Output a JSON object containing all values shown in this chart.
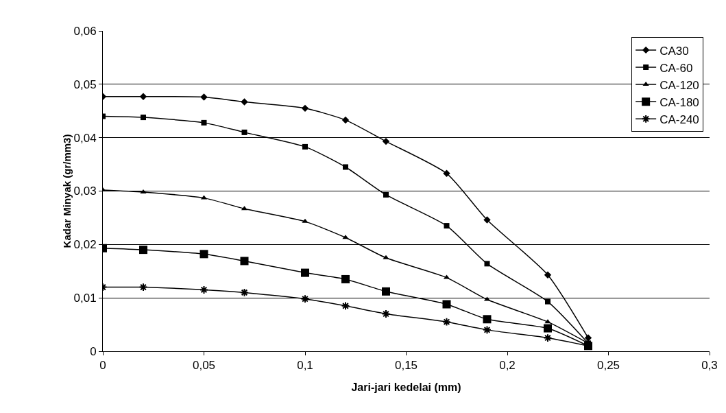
{
  "chart_data": {
    "type": "line",
    "xlabel": "Jari-jari kedelai (mm)",
    "ylabel": "Kadar Minyak (gr/mm3)",
    "x": [
      0,
      0.02,
      0.05,
      0.07,
      0.1,
      0.12,
      0.14,
      0.17,
      0.19,
      0.22,
      0.24
    ],
    "series": [
      {
        "name": "CA30",
        "color": "#000000",
        "marker": "diamond",
        "values": [
          0.0477,
          0.0477,
          0.0476,
          0.0467,
          0.0455,
          0.0433,
          0.0393,
          0.0333,
          0.0246,
          0.0143,
          0.0025
        ]
      },
      {
        "name": "CA-60",
        "color": "#000000",
        "marker": "square",
        "values": [
          0.044,
          0.0438,
          0.0428,
          0.041,
          0.0383,
          0.0345,
          0.0293,
          0.0235,
          0.0164,
          0.0093,
          0.0015
        ]
      },
      {
        "name": "CA-120",
        "color": "#000000",
        "marker": "triangle",
        "values": [
          0.0302,
          0.0298,
          0.0287,
          0.0267,
          0.0243,
          0.0213,
          0.0175,
          0.0138,
          0.0097,
          0.0055,
          0.0015
        ]
      },
      {
        "name": "CA-180",
        "color": "#000000",
        "marker": "square",
        "values": [
          0.0193,
          0.019,
          0.0182,
          0.0169,
          0.0147,
          0.0135,
          0.0112,
          0.0088,
          0.006,
          0.0043,
          0.001
        ]
      },
      {
        "name": "CA-240",
        "color": "#000000",
        "marker": "cross",
        "values": [
          0.012,
          0.012,
          0.0115,
          0.011,
          0.0098,
          0.0085,
          0.007,
          0.0055,
          0.004,
          0.0025,
          0.001
        ]
      }
    ],
    "xlim": [
      0,
      0.3
    ],
    "xticks": [
      {
        "value": 0,
        "label": "0"
      },
      {
        "value": 0.05,
        "label": "0,05"
      },
      {
        "value": 0.1,
        "label": "0,1"
      },
      {
        "value": 0.15,
        "label": "0,15"
      },
      {
        "value": 0.2,
        "label": "0,2"
      },
      {
        "value": 0.25,
        "label": "0,25"
      },
      {
        "value": 0.3,
        "label": "0,3"
      }
    ],
    "ylim": [
      0,
      0.06
    ],
    "yticks": [
      {
        "value": 0,
        "label": "0"
      },
      {
        "value": 0.01,
        "label": "0,01"
      },
      {
        "value": 0.02,
        "label": "0,02"
      },
      {
        "value": 0.03,
        "label": "0,03"
      },
      {
        "value": 0.04,
        "label": "0,04"
      },
      {
        "value": 0.05,
        "label": "0,05"
      },
      {
        "value": 0.06,
        "label": "0,06"
      }
    ],
    "grid": "y",
    "legend": "top right",
    "line_style": "solid"
  }
}
